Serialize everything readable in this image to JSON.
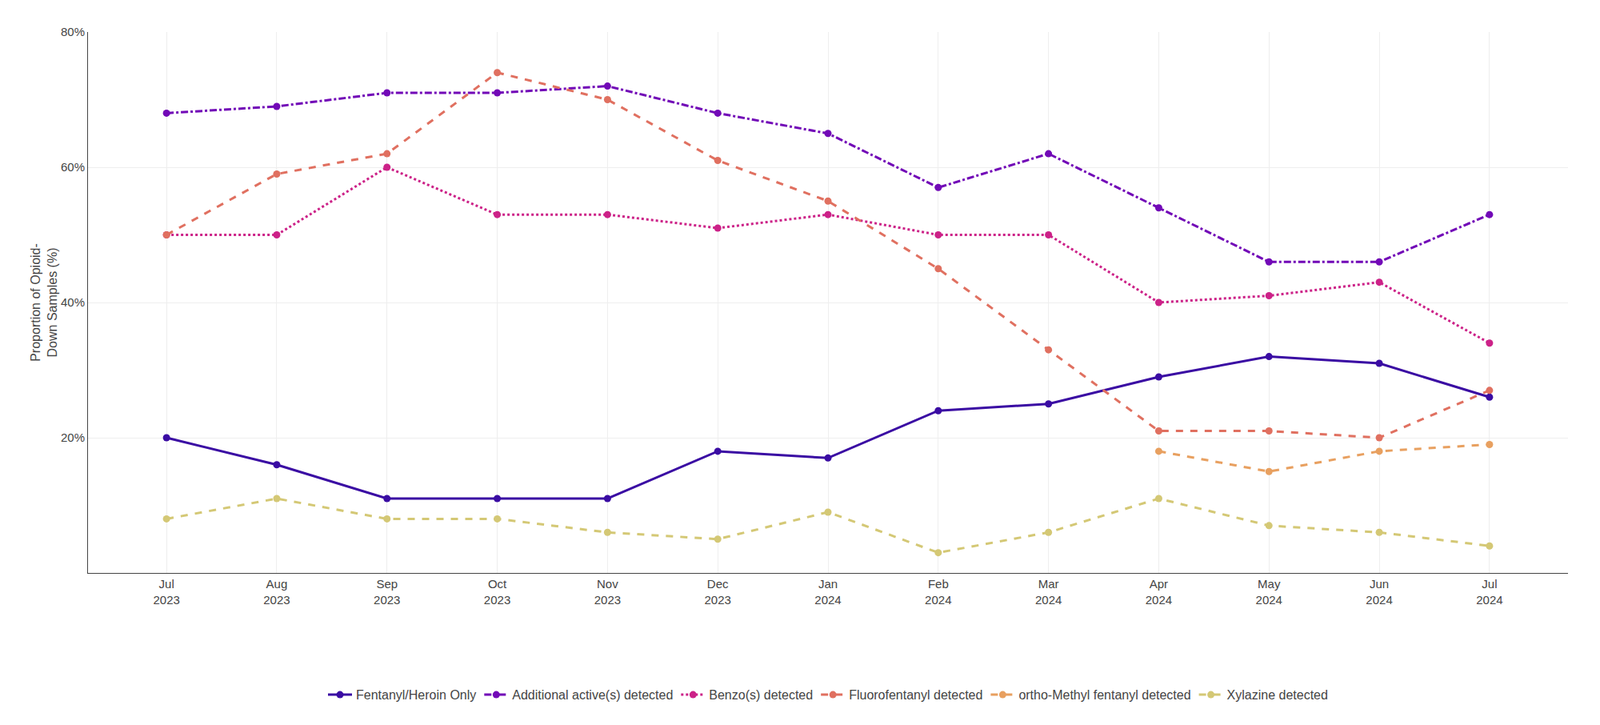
{
  "chart_data": {
    "type": "line",
    "categories": [
      "Jul\n2023",
      "Aug\n2023",
      "Sep\n2023",
      "Oct\n2023",
      "Nov\n2023",
      "Dec\n2023",
      "Jan\n2024",
      "Feb\n2024",
      "Mar\n2024",
      "Apr\n2024",
      "May\n2024",
      "Jun\n2024",
      "Jul\n2024"
    ],
    "series": [
      {
        "name": "Fentanyl/Heroin Only",
        "color": "#3a0ca3",
        "line_style": "solid",
        "marker": "circle",
        "values": [
          20,
          16,
          11,
          11,
          11,
          18,
          17,
          24,
          25,
          29,
          32,
          31,
          26
        ]
      },
      {
        "name": "Additional active(s) detected",
        "color": "#7209b7",
        "line_style": "dashdot",
        "marker": "circle",
        "values": [
          68,
          69,
          71,
          71,
          72,
          68,
          65,
          57,
          62,
          54,
          46,
          46,
          53
        ]
      },
      {
        "name": "Benzo(s) detected",
        "color": "#cc2288",
        "line_style": "dot",
        "marker": "circle",
        "values": [
          50,
          50,
          60,
          53,
          53,
          51,
          53,
          50,
          50,
          40,
          41,
          43,
          34
        ]
      },
      {
        "name": "Fluorofentanyl detected",
        "color": "#e07060",
        "line_style": "dash",
        "marker": "circle",
        "values": [
          50,
          59,
          62,
          74,
          70,
          61,
          55,
          45,
          33,
          21,
          21,
          20,
          27
        ]
      },
      {
        "name": "ortho-Methyl fentanyl detected",
        "color": "#e8a060",
        "line_style": "dash",
        "marker": "circle",
        "values": [
          null,
          null,
          null,
          null,
          null,
          null,
          null,
          null,
          null,
          18,
          15,
          18,
          19
        ]
      },
      {
        "name": "Xylazine detected",
        "color": "#d4c875",
        "line_style": "dash",
        "marker": "circle",
        "values": [
          8,
          11,
          8,
          8,
          6,
          5,
          9,
          3,
          6,
          11,
          7,
          6,
          4
        ]
      }
    ],
    "ylabel": "Proportion of Opioid-\nDown Samples (%)",
    "ylim": [
      0,
      80
    ],
    "yticks": [
      {
        "value": 20,
        "label": "20%"
      },
      {
        "value": 40,
        "label": "40%"
      },
      {
        "value": 60,
        "label": "60%"
      },
      {
        "value": 80,
        "label": "80%"
      }
    ],
    "grid": true,
    "legend": "bottom"
  }
}
